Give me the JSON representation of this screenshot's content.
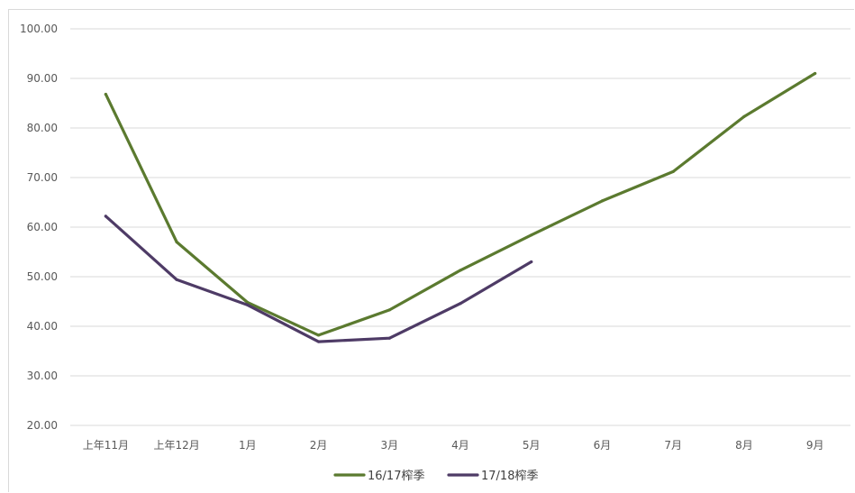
{
  "chart_data": {
    "type": "line",
    "categories": [
      "上年11月",
      "上年12月",
      "1月",
      "2月",
      "3月",
      "4月",
      "5月",
      "6月",
      "7月",
      "8月",
      "9月"
    ],
    "y_ticks": [
      "20.00",
      "30.00",
      "40.00",
      "50.00",
      "60.00",
      "70.00",
      "80.00",
      "90.00",
      "100.00"
    ],
    "ylim": [
      20,
      100
    ],
    "grid": true,
    "legend_position": "bottom",
    "series": [
      {
        "name": "16/17榨季",
        "color": "#5b7a2f",
        "values": [
          86.8,
          57.0,
          44.8,
          38.2,
          43.3,
          51.3,
          58.4,
          65.3,
          71.2,
          82.3,
          91.0
        ]
      },
      {
        "name": "17/18榨季",
        "color": "#4e3b66",
        "values": [
          62.2,
          49.4,
          44.3,
          36.9,
          37.6,
          44.6,
          53.0,
          null,
          null,
          null,
          null
        ]
      }
    ]
  }
}
